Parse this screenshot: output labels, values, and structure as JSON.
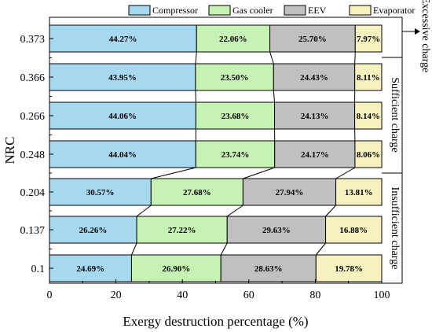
{
  "chart_data": {
    "type": "bar",
    "orientation": "horizontal",
    "stacked": true,
    "xlabel": "Exergy destruction percentage (%)",
    "ylabel": "NRC",
    "xlim": [
      0,
      100
    ],
    "xticks": [
      0,
      20,
      40,
      60,
      80,
      100
    ],
    "categories": [
      "0.373",
      "0.366",
      "0.266",
      "0.248",
      "0.204",
      "0.137",
      "0.1"
    ],
    "series": [
      {
        "name": "Compressor",
        "color": "#a6d8f0",
        "values": [
          44.27,
          43.95,
          44.06,
          44.04,
          30.57,
          26.26,
          24.69
        ],
        "labels": [
          "44.27%",
          "43.95%",
          "44.06%",
          "44.04%",
          "30.57%",
          "26.26%",
          "24.69%"
        ]
      },
      {
        "name": "Gas cooler",
        "color": "#c6f2b4",
        "values": [
          22.06,
          23.5,
          23.68,
          23.74,
          27.68,
          27.22,
          26.9
        ],
        "labels": [
          "22.06%",
          "23.50%",
          "23.68%",
          "23.74%",
          "27.68%",
          "27.22%",
          "26.90%"
        ]
      },
      {
        "name": "EEV",
        "color": "#c0c0c0",
        "values": [
          25.7,
          24.43,
          24.13,
          24.17,
          27.94,
          29.63,
          28.63
        ],
        "labels": [
          "25.70%",
          "24.43%",
          "24.13%",
          "24.17%",
          "27.94%",
          "29.63%",
          "28.63%"
        ]
      },
      {
        "name": "Evaporator",
        "color": "#f6f2c0",
        "values": [
          7.97,
          8.11,
          8.14,
          8.06,
          13.81,
          16.88,
          19.78
        ],
        "labels": [
          "7.97%",
          "8.11%",
          "8.14%",
          "8.06%",
          "13.81%",
          "16.88%",
          "19.78%"
        ]
      }
    ],
    "groups": [
      {
        "label": "Excessive charge"
      },
      {
        "label": "Sufficient charge"
      },
      {
        "label": "Insufficient charge"
      }
    ],
    "legend": "top",
    "grid": false,
    "connectors": true
  }
}
